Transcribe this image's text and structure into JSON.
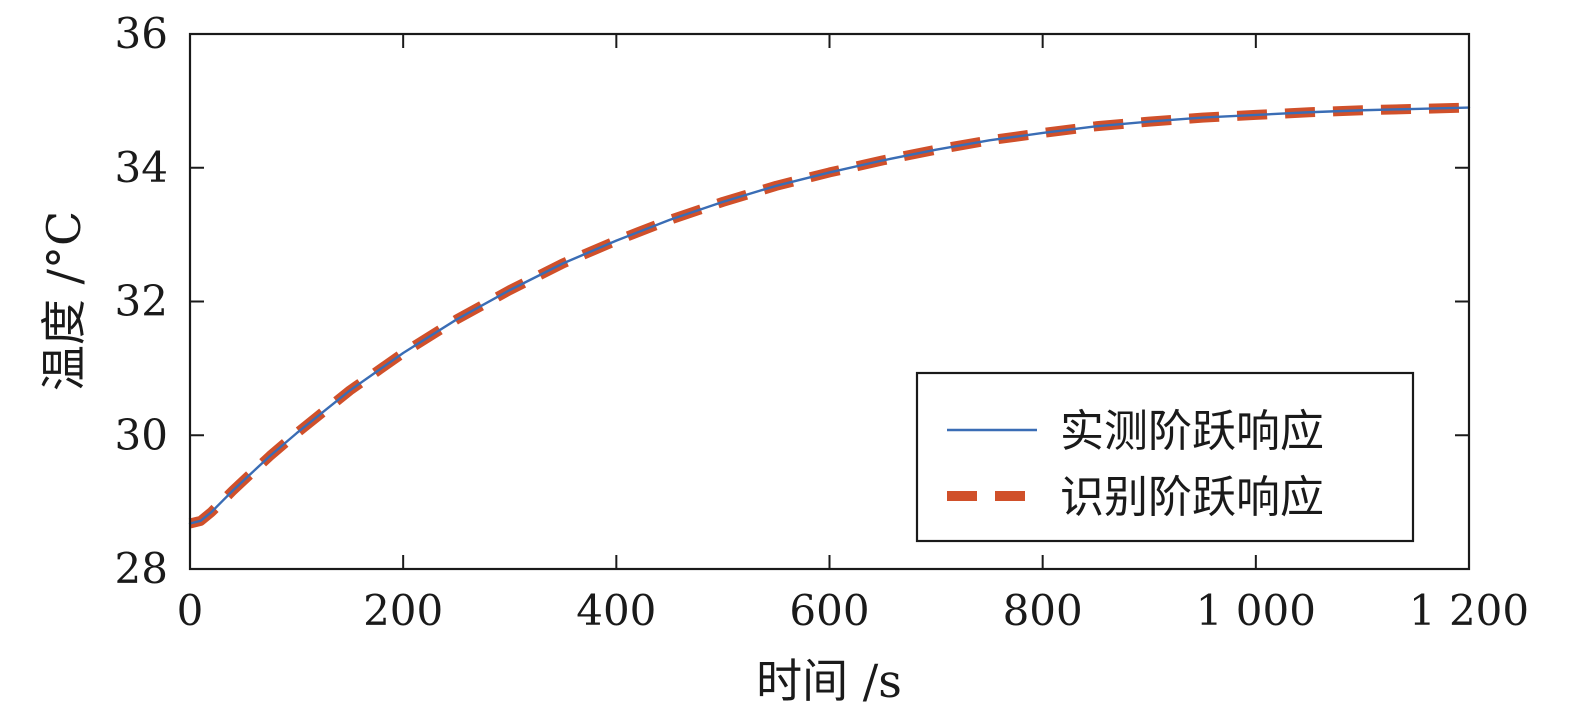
{
  "chart_data": {
    "type": "line",
    "xlabel": "时间 /s",
    "ylabel": "温度 /°C",
    "xlim": [
      0,
      1200
    ],
    "ylim": [
      28,
      36
    ],
    "x_ticks": [
      0,
      200,
      400,
      600,
      800,
      1000,
      1200
    ],
    "x_tick_labels": [
      "0",
      "200",
      "400",
      "600",
      "800",
      "1 000",
      "1 200"
    ],
    "y_ticks": [
      28,
      30,
      32,
      34,
      36
    ],
    "y_tick_labels": [
      "28",
      "30",
      "32",
      "34",
      "36"
    ],
    "grid": false,
    "legend_position": "bottom-right",
    "x": [
      0,
      10,
      20,
      30,
      40,
      50,
      75,
      100,
      150,
      200,
      250,
      300,
      350,
      400,
      450,
      500,
      550,
      600,
      650,
      700,
      750,
      800,
      850,
      900,
      950,
      1000,
      1050,
      1100,
      1150,
      1200
    ],
    "series": [
      {
        "name": "实测阶跃响应",
        "style": "solid",
        "color": "#3a6db5",
        "values": [
          28.68,
          28.72,
          28.85,
          29.01,
          29.17,
          29.32,
          29.69,
          30.03,
          30.67,
          31.23,
          31.73,
          32.17,
          32.57,
          32.91,
          33.22,
          33.49,
          33.73,
          33.93,
          34.11,
          34.27,
          34.41,
          34.52,
          34.62,
          34.69,
          34.75,
          34.79,
          34.83,
          34.86,
          34.88,
          34.9
        ]
      },
      {
        "name": "识别阶跃响应",
        "style": "dashed",
        "color": "#d0502a",
        "values": [
          28.68,
          28.72,
          28.85,
          29.01,
          29.17,
          29.32,
          29.69,
          30.03,
          30.67,
          31.23,
          31.73,
          32.17,
          32.57,
          32.91,
          33.22,
          33.49,
          33.73,
          33.93,
          34.11,
          34.27,
          34.41,
          34.52,
          34.62,
          34.69,
          34.75,
          34.79,
          34.83,
          34.86,
          34.88,
          34.9
        ]
      }
    ]
  }
}
